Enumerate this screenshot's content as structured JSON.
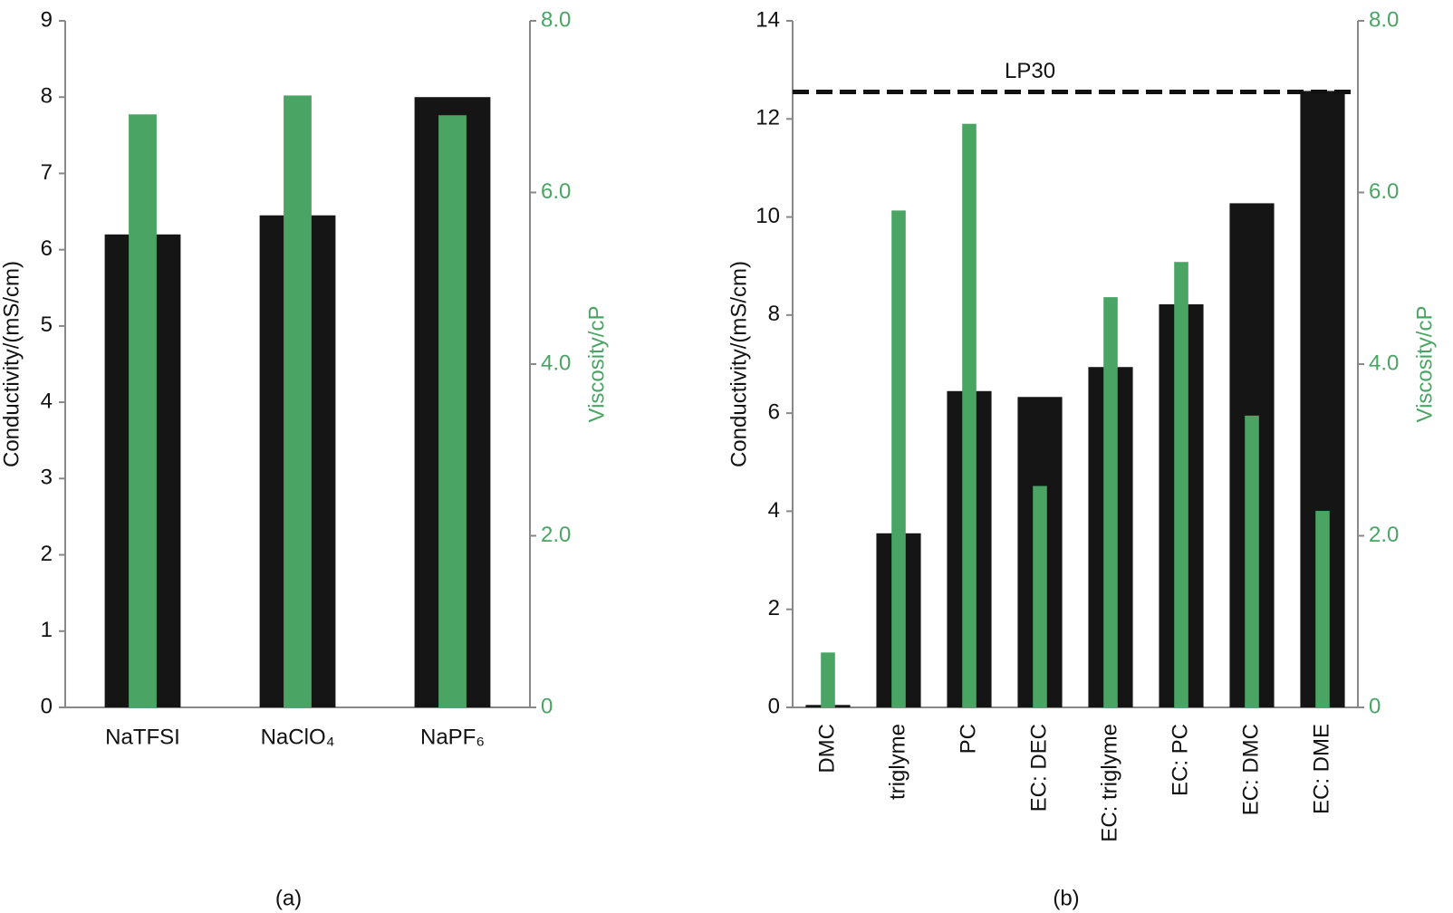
{
  "chart_data": [
    {
      "type": "bar",
      "caption": "(a)",
      "categories": [
        "NaTFSI",
        "NaClO₄",
        "NaPF₆"
      ],
      "ylabel": "Conductivity/(mS/cm)",
      "y2label": "Viscosity/cP",
      "ylim": [
        0,
        9
      ],
      "yticks": [
        0,
        1,
        2,
        3,
        4,
        5,
        6,
        7,
        8,
        9
      ],
      "y2lim": [
        0,
        8
      ],
      "y2ticks": [
        0,
        {
          "value": 2,
          "label": "2.0"
        },
        {
          "value": 4,
          "label": "4.0"
        },
        {
          "value": 6,
          "label": "6.0"
        },
        {
          "value": 8,
          "label": "8.0"
        }
      ],
      "y2color": "#4aa564",
      "xticks_rotation": 0,
      "series": [
        {
          "color": "#151515",
          "values": [
            6.2,
            6.45,
            8.0
          ]
        },
        {
          "color": "#4aa564",
          "axis": "y2",
          "values": [
            6.91,
            7.13,
            6.9
          ]
        }
      ]
    },
    {
      "type": "bar",
      "caption": "(b)",
      "categories": [
        "DMC",
        "triglyme",
        "PC",
        "EC: DEC",
        "EC: triglyme",
        "EC: PC",
        "EC: DMC",
        "EC: DME"
      ],
      "ylabel": "Conductivity/(mS/cm)",
      "y2label": "Viscosity/cP",
      "ylim": [
        0,
        14
      ],
      "yticks": [
        0,
        2,
        4,
        6,
        8,
        10,
        12,
        14
      ],
      "y2lim": [
        0,
        8
      ],
      "y2ticks": [
        0,
        {
          "value": 2,
          "label": "2.0"
        },
        {
          "value": 4,
          "label": "4.0"
        },
        {
          "value": 6,
          "label": "6.0"
        },
        {
          "value": 8,
          "label": "8.0"
        }
      ],
      "y2color": "#4aa564",
      "xticks_rotation": 90,
      "reference": {
        "label": "LP30",
        "value": 12.55
      },
      "series": [
        {
          "color": "#151515",
          "values": [
            0.05,
            3.55,
            6.45,
            6.33,
            6.94,
            8.22,
            10.28,
            12.57
          ]
        },
        {
          "color": "#4aa564",
          "axis": "y2",
          "values": [
            0.64,
            5.79,
            6.8,
            2.58,
            4.78,
            5.19,
            3.4,
            2.29
          ]
        }
      ]
    }
  ]
}
